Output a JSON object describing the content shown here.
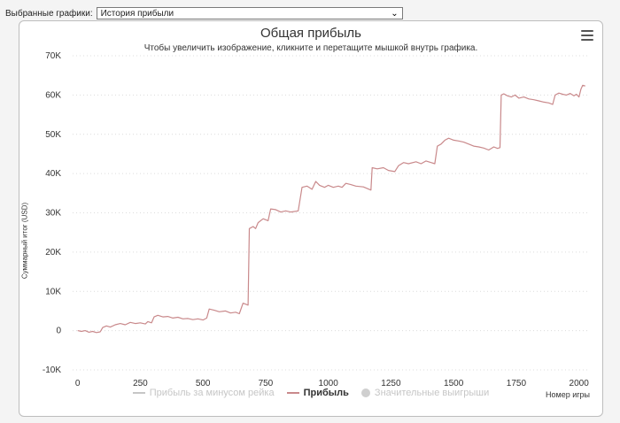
{
  "toolbar": {
    "label": "Выбранные графики:",
    "selected_chart": "История прибыли"
  },
  "icons": {
    "dropdown": "chevron-down-icon",
    "menu": "hamburger-menu-icon"
  },
  "chart_data": {
    "type": "line",
    "title": "Общая прибыль",
    "subtitle": "Чтобы увеличить изображение, кликните и перетащите мышкой внутрь графика.",
    "xlabel": "Номер игры",
    "ylabel": "Суммарный итог (USD)",
    "xlim": [
      -20,
      2040
    ],
    "ylim": [
      -10000,
      70000
    ],
    "x_ticks": [
      0,
      250,
      500,
      750,
      1000,
      1250,
      1500,
      1750,
      2000
    ],
    "x_tick_labels": [
      "0",
      "250",
      "500",
      "750",
      "1000",
      "1250",
      "1500",
      "1750",
      "2000"
    ],
    "y_ticks": [
      -10000,
      0,
      10000,
      20000,
      30000,
      40000,
      50000,
      60000,
      70000
    ],
    "y_tick_labels": [
      "-10K",
      "0",
      "10K",
      "20K",
      "30K",
      "40K",
      "50K",
      "60K",
      "70K"
    ],
    "grid": "horizontal dotted",
    "legend_position": "bottom",
    "legend": [
      {
        "label": "Прибыль за минусом рейка",
        "state": "hidden",
        "symbol": "line"
      },
      {
        "label": "Прибыль",
        "state": "visible",
        "symbol": "line"
      },
      {
        "label": "Значительные выигрыши",
        "state": "hidden",
        "symbol": "dot"
      }
    ],
    "colors": {
      "profit": "#c9898b",
      "hidden": "#c6c6c6"
    },
    "series": [
      {
        "name": "Прибыль",
        "points": [
          [
            0,
            0
          ],
          [
            15,
            -200
          ],
          [
            30,
            0
          ],
          [
            45,
            -400
          ],
          [
            60,
            -200
          ],
          [
            75,
            -500
          ],
          [
            90,
            -300
          ],
          [
            100,
            800
          ],
          [
            115,
            1200
          ],
          [
            130,
            900
          ],
          [
            150,
            1500
          ],
          [
            170,
            1800
          ],
          [
            190,
            1500
          ],
          [
            210,
            2100
          ],
          [
            230,
            1800
          ],
          [
            250,
            2000
          ],
          [
            270,
            1700
          ],
          [
            280,
            2300
          ],
          [
            295,
            2000
          ],
          [
            305,
            3500
          ],
          [
            320,
            3900
          ],
          [
            340,
            3500
          ],
          [
            360,
            3600
          ],
          [
            380,
            3200
          ],
          [
            400,
            3400
          ],
          [
            420,
            3000
          ],
          [
            440,
            3100
          ],
          [
            460,
            2800
          ],
          [
            480,
            3000
          ],
          [
            500,
            2700
          ],
          [
            515,
            3200
          ],
          [
            525,
            5500
          ],
          [
            545,
            5200
          ],
          [
            565,
            4800
          ],
          [
            590,
            5000
          ],
          [
            610,
            4500
          ],
          [
            630,
            4700
          ],
          [
            645,
            4300
          ],
          [
            660,
            7000
          ],
          [
            680,
            6500
          ],
          [
            685,
            26000
          ],
          [
            700,
            26500
          ],
          [
            710,
            26000
          ],
          [
            720,
            27500
          ],
          [
            740,
            28500
          ],
          [
            760,
            28000
          ],
          [
            770,
            31000
          ],
          [
            790,
            30800
          ],
          [
            810,
            30200
          ],
          [
            830,
            30500
          ],
          [
            850,
            30200
          ],
          [
            880,
            30500
          ],
          [
            895,
            36500
          ],
          [
            915,
            36800
          ],
          [
            935,
            36000
          ],
          [
            950,
            38000
          ],
          [
            965,
            37000
          ],
          [
            985,
            36500
          ],
          [
            1000,
            37000
          ],
          [
            1020,
            36500
          ],
          [
            1040,
            36800
          ],
          [
            1055,
            36500
          ],
          [
            1070,
            37500
          ],
          [
            1090,
            37200
          ],
          [
            1110,
            36800
          ],
          [
            1140,
            36600
          ],
          [
            1170,
            35800
          ],
          [
            1175,
            41500
          ],
          [
            1195,
            41200
          ],
          [
            1220,
            41500
          ],
          [
            1240,
            40800
          ],
          [
            1265,
            40500
          ],
          [
            1280,
            42000
          ],
          [
            1300,
            42800
          ],
          [
            1320,
            42500
          ],
          [
            1350,
            43000
          ],
          [
            1370,
            42500
          ],
          [
            1390,
            43200
          ],
          [
            1410,
            42800
          ],
          [
            1425,
            42500
          ],
          [
            1435,
            47000
          ],
          [
            1450,
            47500
          ],
          [
            1465,
            48500
          ],
          [
            1480,
            49000
          ],
          [
            1500,
            48500
          ],
          [
            1520,
            48300
          ],
          [
            1540,
            48000
          ],
          [
            1560,
            47500
          ],
          [
            1580,
            47000
          ],
          [
            1600,
            46800
          ],
          [
            1620,
            46500
          ],
          [
            1640,
            46000
          ],
          [
            1660,
            46800
          ],
          [
            1675,
            46400
          ],
          [
            1685,
            46600
          ],
          [
            1690,
            60000
          ],
          [
            1700,
            60300
          ],
          [
            1715,
            59800
          ],
          [
            1730,
            59500
          ],
          [
            1745,
            60000
          ],
          [
            1760,
            59200
          ],
          [
            1780,
            59500
          ],
          [
            1800,
            59000
          ],
          [
            1820,
            58800
          ],
          [
            1840,
            58500
          ],
          [
            1860,
            58200
          ],
          [
            1880,
            58000
          ],
          [
            1895,
            57600
          ],
          [
            1905,
            60000
          ],
          [
            1920,
            60500
          ],
          [
            1935,
            60200
          ],
          [
            1950,
            60000
          ],
          [
            1965,
            60400
          ],
          [
            1980,
            59800
          ],
          [
            1990,
            60200
          ],
          [
            2000,
            59500
          ],
          [
            2008,
            61500
          ],
          [
            2015,
            62500
          ],
          [
            2025,
            62300
          ]
        ]
      }
    ]
  }
}
